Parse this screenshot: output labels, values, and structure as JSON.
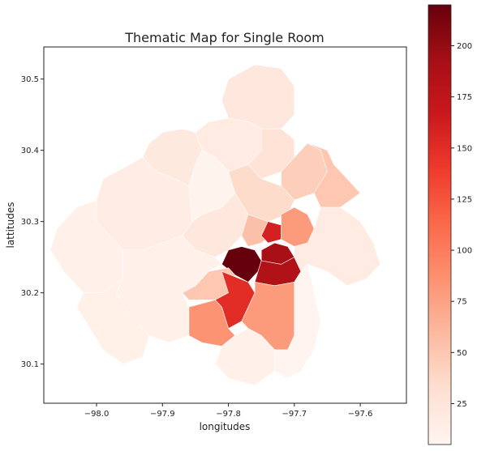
{
  "chart_data": {
    "type": "choropleth",
    "title": "Thematic Map for Single Room",
    "xlabel": "longitudes",
    "ylabel": "lattitudes",
    "xlim": [
      -98.08,
      -97.53
    ],
    "ylim": [
      30.045,
      30.545
    ],
    "x_ticks": [
      -98.0,
      -97.9,
      -97.8,
      -97.7,
      -97.6
    ],
    "x_tick_labels": [
      "−98.0",
      "−97.9",
      "−97.8",
      "−97.7",
      "−97.6"
    ],
    "y_ticks": [
      30.1,
      30.2,
      30.3,
      30.4,
      30.5
    ],
    "y_tick_labels": [
      "30.1",
      "30.2",
      "30.3",
      "30.4",
      "30.5"
    ],
    "colorbar": {
      "colormap": "Reds",
      "vmin": 5,
      "vmax": 220,
      "ticks": [
        25,
        50,
        75,
        100,
        125,
        150,
        175,
        200
      ],
      "tick_labels": [
        "25",
        "50",
        "75",
        "100",
        "125",
        "150",
        "175",
        "200"
      ]
    },
    "regions": [
      {
        "id": "northwest-outer",
        "value": 15,
        "poly": [
          [
            -98.0,
            30.33
          ],
          [
            -97.99,
            30.36
          ],
          [
            -97.96,
            30.375
          ],
          [
            -97.93,
            30.39
          ],
          [
            -97.91,
            30.37
          ],
          [
            -97.88,
            30.36
          ],
          [
            -97.86,
            30.35
          ],
          [
            -97.855,
            30.3
          ],
          [
            -97.87,
            30.28
          ],
          [
            -97.9,
            30.27
          ],
          [
            -97.93,
            30.26
          ],
          [
            -97.96,
            30.26
          ],
          [
            -97.98,
            30.28
          ],
          [
            -98.0,
            30.3
          ]
        ]
      },
      {
        "id": "west-far",
        "value": 10,
        "poly": [
          [
            -98.06,
            30.29
          ],
          [
            -98.03,
            30.32
          ],
          [
            -98.0,
            30.33
          ],
          [
            -98.0,
            30.3
          ],
          [
            -97.98,
            30.28
          ],
          [
            -97.96,
            30.26
          ],
          [
            -97.96,
            30.22
          ],
          [
            -97.99,
            30.2
          ],
          [
            -98.02,
            30.2
          ],
          [
            -98.05,
            30.23
          ],
          [
            -98.07,
            30.26
          ]
        ]
      },
      {
        "id": "northwest-peak",
        "value": 20,
        "poly": [
          [
            -97.93,
            30.39
          ],
          [
            -97.92,
            30.41
          ],
          [
            -97.9,
            30.425
          ],
          [
            -97.87,
            30.43
          ],
          [
            -97.85,
            30.425
          ],
          [
            -97.84,
            30.4
          ],
          [
            -97.85,
            30.38
          ],
          [
            -97.86,
            30.35
          ],
          [
            -97.88,
            30.36
          ],
          [
            -97.91,
            30.37
          ]
        ]
      },
      {
        "id": "north-west-inner",
        "value": 8,
        "poly": [
          [
            -97.86,
            30.35
          ],
          [
            -97.85,
            30.38
          ],
          [
            -97.84,
            30.4
          ],
          [
            -97.82,
            30.39
          ],
          [
            -97.8,
            30.37
          ],
          [
            -97.79,
            30.34
          ],
          [
            -97.81,
            30.32
          ],
          [
            -97.84,
            30.31
          ],
          [
            -97.855,
            30.3
          ]
        ]
      },
      {
        "id": "north-upper",
        "value": 18,
        "poly": [
          [
            -97.84,
            30.4
          ],
          [
            -97.85,
            30.425
          ],
          [
            -97.83,
            30.44
          ],
          [
            -97.8,
            30.445
          ],
          [
            -97.77,
            30.44
          ],
          [
            -97.75,
            30.43
          ],
          [
            -97.75,
            30.4
          ],
          [
            -97.77,
            30.38
          ],
          [
            -97.8,
            30.37
          ],
          [
            -97.82,
            30.39
          ]
        ]
      },
      {
        "id": "far-north",
        "value": 22,
        "poly": [
          [
            -97.8,
            30.445
          ],
          [
            -97.81,
            30.47
          ],
          [
            -97.8,
            30.5
          ],
          [
            -97.76,
            30.52
          ],
          [
            -97.72,
            30.515
          ],
          [
            -97.7,
            30.49
          ],
          [
            -97.7,
            30.45
          ],
          [
            -97.72,
            30.43
          ],
          [
            -97.75,
            30.43
          ],
          [
            -97.77,
            30.44
          ]
        ]
      },
      {
        "id": "north-mid",
        "value": 28,
        "poly": [
          [
            -97.75,
            30.43
          ],
          [
            -97.72,
            30.43
          ],
          [
            -97.7,
            30.415
          ],
          [
            -97.7,
            30.39
          ],
          [
            -97.72,
            30.37
          ],
          [
            -97.75,
            30.36
          ],
          [
            -97.77,
            30.38
          ],
          [
            -97.75,
            30.4
          ]
        ]
      },
      {
        "id": "northeast-a",
        "value": 45,
        "poly": [
          [
            -97.7,
            30.39
          ],
          [
            -97.68,
            30.41
          ],
          [
            -97.66,
            30.4
          ],
          [
            -97.65,
            30.37
          ],
          [
            -97.67,
            30.34
          ],
          [
            -97.7,
            30.33
          ],
          [
            -97.72,
            30.35
          ],
          [
            -97.72,
            30.37
          ]
        ]
      },
      {
        "id": "northeast-b",
        "value": 50,
        "poly": [
          [
            -97.68,
            30.41
          ],
          [
            -97.65,
            30.4
          ],
          [
            -97.64,
            30.38
          ],
          [
            -97.62,
            30.36
          ],
          [
            -97.6,
            30.34
          ],
          [
            -97.63,
            30.32
          ],
          [
            -97.66,
            30.32
          ],
          [
            -97.67,
            30.34
          ],
          [
            -97.65,
            30.37
          ],
          [
            -97.66,
            30.4
          ]
        ]
      },
      {
        "id": "north-central",
        "value": 35,
        "poly": [
          [
            -97.77,
            30.38
          ],
          [
            -97.75,
            30.36
          ],
          [
            -97.72,
            30.35
          ],
          [
            -97.7,
            30.33
          ],
          [
            -97.71,
            30.31
          ],
          [
            -97.74,
            30.3
          ],
          [
            -97.77,
            30.31
          ],
          [
            -97.79,
            30.34
          ],
          [
            -97.8,
            30.37
          ]
        ]
      },
      {
        "id": "central-west",
        "value": 22,
        "poly": [
          [
            -97.855,
            30.3
          ],
          [
            -97.84,
            30.31
          ],
          [
            -97.81,
            30.32
          ],
          [
            -97.79,
            30.34
          ],
          [
            -97.77,
            30.31
          ],
          [
            -97.78,
            30.28
          ],
          [
            -97.8,
            30.26
          ],
          [
            -97.82,
            30.25
          ],
          [
            -97.85,
            30.26
          ],
          [
            -97.87,
            30.28
          ]
        ]
      },
      {
        "id": "central-north",
        "value": 55,
        "poly": [
          [
            -97.77,
            30.31
          ],
          [
            -97.74,
            30.3
          ],
          [
            -97.73,
            30.285
          ],
          [
            -97.75,
            30.27
          ],
          [
            -97.77,
            30.265
          ],
          [
            -97.78,
            30.28
          ]
        ]
      },
      {
        "id": "central-hot-small",
        "value": 160,
        "poly": [
          [
            -97.74,
            30.3
          ],
          [
            -97.72,
            30.295
          ],
          [
            -97.72,
            30.275
          ],
          [
            -97.74,
            30.27
          ],
          [
            -97.75,
            30.28
          ]
        ]
      },
      {
        "id": "east-central",
        "value": 80,
        "poly": [
          [
            -97.72,
            30.31
          ],
          [
            -97.7,
            30.32
          ],
          [
            -97.68,
            30.31
          ],
          [
            -97.67,
            30.29
          ],
          [
            -97.68,
            30.27
          ],
          [
            -97.7,
            30.265
          ],
          [
            -97.72,
            30.275
          ]
        ]
      },
      {
        "id": "downtown",
        "value": 220,
        "poly": [
          [
            -97.81,
            30.24
          ],
          [
            -97.8,
            30.26
          ],
          [
            -97.78,
            30.265
          ],
          [
            -97.76,
            30.26
          ],
          [
            -97.75,
            30.245
          ],
          [
            -97.755,
            30.23
          ],
          [
            -97.77,
            30.215
          ],
          [
            -97.79,
            30.225
          ]
        ]
      },
      {
        "id": "east-downtown-n",
        "value": 190,
        "poly": [
          [
            -97.75,
            30.26
          ],
          [
            -97.73,
            30.27
          ],
          [
            -97.71,
            30.265
          ],
          [
            -97.7,
            30.25
          ],
          [
            -97.72,
            30.24
          ],
          [
            -97.75,
            30.245
          ]
        ]
      },
      {
        "id": "east-downtown-s",
        "value": 185,
        "poly": [
          [
            -97.755,
            30.23
          ],
          [
            -97.75,
            30.245
          ],
          [
            -97.72,
            30.24
          ],
          [
            -97.7,
            30.25
          ],
          [
            -97.69,
            30.23
          ],
          [
            -97.7,
            30.215
          ],
          [
            -97.73,
            30.21
          ],
          [
            -97.76,
            30.215
          ]
        ]
      },
      {
        "id": "east-outer",
        "value": 18,
        "poly": [
          [
            -97.68,
            30.27
          ],
          [
            -97.67,
            30.29
          ],
          [
            -97.66,
            30.32
          ],
          [
            -97.63,
            30.32
          ],
          [
            -97.6,
            30.3
          ],
          [
            -97.58,
            30.27
          ],
          [
            -97.57,
            30.24
          ],
          [
            -97.59,
            30.22
          ],
          [
            -97.62,
            30.21
          ],
          [
            -97.65,
            30.23
          ],
          [
            -97.68,
            30.24
          ],
          [
            -97.69,
            30.23
          ],
          [
            -97.7,
            30.25
          ],
          [
            -97.7,
            30.265
          ]
        ]
      },
      {
        "id": "south-central-west",
        "value": 50,
        "poly": [
          [
            -97.85,
            30.21
          ],
          [
            -97.83,
            30.23
          ],
          [
            -97.8,
            30.235
          ],
          [
            -97.79,
            30.225
          ],
          [
            -97.8,
            30.2
          ],
          [
            -97.82,
            30.19
          ],
          [
            -97.86,
            30.19
          ],
          [
            -97.87,
            30.2
          ]
        ]
      },
      {
        "id": "south-red",
        "value": 150,
        "poly": [
          [
            -97.81,
            30.23
          ],
          [
            -97.77,
            30.215
          ],
          [
            -97.76,
            30.2
          ],
          [
            -97.78,
            30.16
          ],
          [
            -97.8,
            30.15
          ],
          [
            -97.81,
            30.18
          ],
          [
            -97.82,
            30.19
          ],
          [
            -97.8,
            30.2
          ]
        ]
      },
      {
        "id": "south-east-big",
        "value": 80,
        "poly": [
          [
            -97.76,
            30.215
          ],
          [
            -97.73,
            30.21
          ],
          [
            -97.7,
            30.215
          ],
          [
            -97.7,
            30.18
          ],
          [
            -97.7,
            30.14
          ],
          [
            -97.71,
            30.12
          ],
          [
            -97.73,
            30.12
          ],
          [
            -97.75,
            30.14
          ],
          [
            -97.77,
            30.15
          ],
          [
            -97.78,
            30.16
          ],
          [
            -97.76,
            30.2
          ]
        ]
      },
      {
        "id": "south-west-orange",
        "value": 85,
        "poly": [
          [
            -97.82,
            30.19
          ],
          [
            -97.81,
            30.18
          ],
          [
            -97.8,
            30.15
          ],
          [
            -97.79,
            30.14
          ],
          [
            -97.81,
            30.125
          ],
          [
            -97.84,
            30.13
          ],
          [
            -97.86,
            30.14
          ],
          [
            -97.86,
            30.18
          ]
        ]
      },
      {
        "id": "southwest-large",
        "value": 10,
        "poly": [
          [
            -97.96,
            30.22
          ],
          [
            -97.96,
            30.26
          ],
          [
            -97.93,
            30.26
          ],
          [
            -97.9,
            30.27
          ],
          [
            -97.87,
            30.28
          ],
          [
            -97.85,
            30.26
          ],
          [
            -97.82,
            30.25
          ],
          [
            -97.81,
            30.24
          ],
          [
            -97.83,
            30.23
          ],
          [
            -97.85,
            30.21
          ],
          [
            -97.87,
            30.2
          ],
          [
            -97.86,
            30.18
          ],
          [
            -97.86,
            30.14
          ],
          [
            -97.89,
            30.13
          ],
          [
            -97.92,
            30.14
          ],
          [
            -97.95,
            30.17
          ],
          [
            -97.97,
            30.2
          ]
        ]
      },
      {
        "id": "far-southwest",
        "value": 12,
        "poly": [
          [
            -98.02,
            30.2
          ],
          [
            -97.99,
            30.2
          ],
          [
            -97.96,
            30.22
          ],
          [
            -97.97,
            30.2
          ],
          [
            -97.95,
            30.17
          ],
          [
            -97.92,
            30.14
          ],
          [
            -97.93,
            30.11
          ],
          [
            -97.96,
            30.1
          ],
          [
            -97.99,
            30.12
          ],
          [
            -98.01,
            30.15
          ],
          [
            -98.03,
            30.18
          ]
        ]
      },
      {
        "id": "south-far",
        "value": 10,
        "poly": [
          [
            -97.81,
            30.125
          ],
          [
            -97.79,
            30.14
          ],
          [
            -97.77,
            30.15
          ],
          [
            -97.75,
            30.14
          ],
          [
            -97.73,
            30.12
          ],
          [
            -97.73,
            30.09
          ],
          [
            -97.76,
            30.07
          ],
          [
            -97.8,
            30.08
          ],
          [
            -97.82,
            30.1
          ]
        ]
      },
      {
        "id": "southeast-far",
        "value": 6,
        "poly": [
          [
            -97.71,
            30.12
          ],
          [
            -97.7,
            30.14
          ],
          [
            -97.7,
            30.18
          ],
          [
            -97.7,
            30.215
          ],
          [
            -97.69,
            30.23
          ],
          [
            -97.68,
            30.24
          ],
          [
            -97.67,
            30.2
          ],
          [
            -97.66,
            30.16
          ],
          [
            -97.67,
            30.12
          ],
          [
            -97.69,
            30.09
          ],
          [
            -97.71,
            30.08
          ],
          [
            -97.73,
            30.09
          ],
          [
            -97.73,
            30.12
          ]
        ]
      }
    ]
  }
}
